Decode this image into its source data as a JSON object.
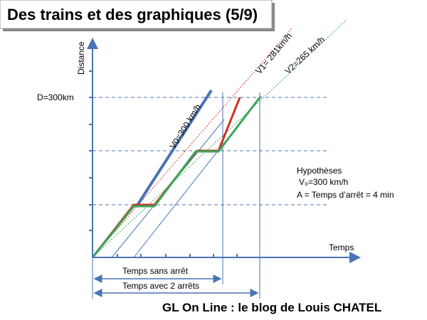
{
  "header": {
    "title": "Des trains et des graphiques (5/9)"
  },
  "axes": {
    "y_label": "Distance",
    "x_label": "Temps",
    "distance_mark": "D=300km"
  },
  "lines": {
    "v0": "V0=300 km/h",
    "v1": "V1= 281km/h",
    "v2": "V2=265 km/h"
  },
  "hypotheses": {
    "title": "Hypothèses",
    "speed": "V₀=300 km/h",
    "stop": "A = Temps d’arrêt = 4 min"
  },
  "durations": {
    "no_stop": "Temps sans arrêt",
    "two_stops": "Temps avec 2 arrêts"
  },
  "footer": "GL On Line : le blog de Louis CHATEL"
}
